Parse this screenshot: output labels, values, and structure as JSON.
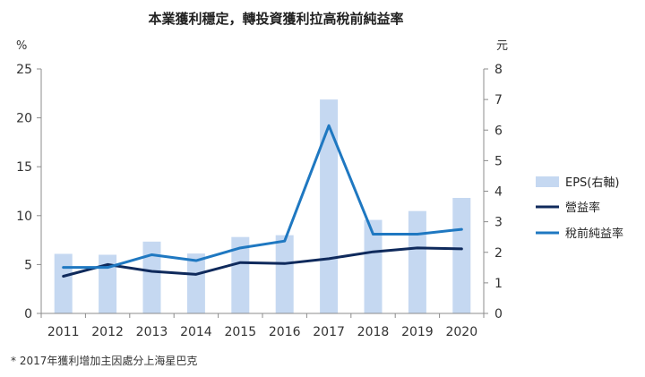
{
  "chart_data": {
    "type": "bar+line",
    "title": "本業獲利穩定，轉投資獲利拉高稅前純益率",
    "y_left_unit": "%",
    "y_right_unit": "元",
    "categories": [
      "2011",
      "2012",
      "2013",
      "2014",
      "2015",
      "2016",
      "2017",
      "2018",
      "2019",
      "2020"
    ],
    "y_left": {
      "min": 0,
      "max": 25,
      "ticks": [
        "0",
        "5",
        "10",
        "15",
        "20",
        "25"
      ]
    },
    "y_right": {
      "min": 0,
      "max": 8,
      "ticks": [
        "0",
        "1",
        "2",
        "3",
        "4",
        "5",
        "6",
        "7",
        "8"
      ]
    },
    "grid": false,
    "legend_position": "right",
    "series": [
      {
        "name": "EPS(右軸)",
        "kind": "bar",
        "axis": "right",
        "color": "#c5d8f1",
        "values": [
          1.95,
          1.92,
          2.35,
          1.96,
          2.5,
          2.56,
          7.0,
          3.06,
          3.35,
          3.78
        ]
      },
      {
        "name": "營益率",
        "kind": "line",
        "axis": "left",
        "color": "#0f2a5c",
        "values": [
          3.8,
          5.0,
          4.3,
          4.0,
          5.2,
          5.1,
          5.6,
          6.3,
          6.7,
          6.6
        ]
      },
      {
        "name": "稅前純益率",
        "kind": "line",
        "axis": "left",
        "color": "#1f78c1",
        "values": [
          4.7,
          4.7,
          6.0,
          5.4,
          6.7,
          7.4,
          19.2,
          8.1,
          8.1,
          8.6
        ]
      }
    ],
    "footnote": "* 2017年獲利增加主因處分上海星巴克"
  }
}
